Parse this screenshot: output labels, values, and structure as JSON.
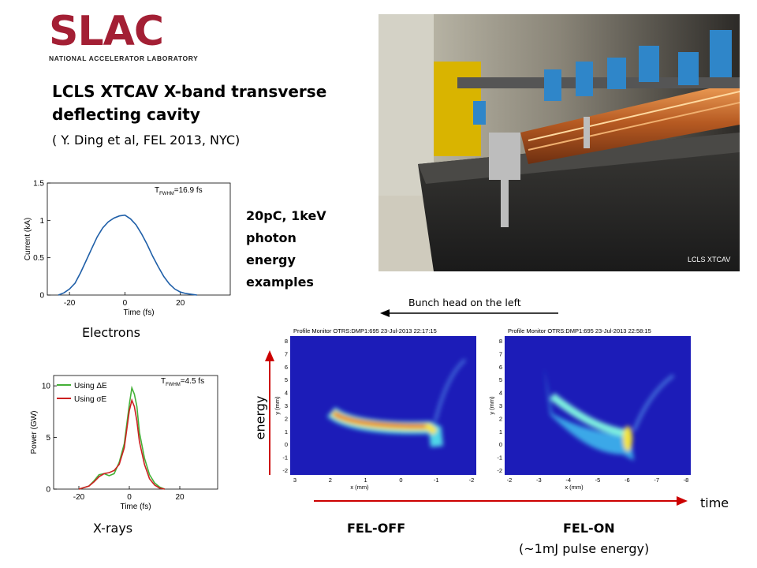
{
  "logo": {
    "wordmark": "SLAC",
    "subtitle": "NATIONAL ACCELERATOR LABORATORY"
  },
  "slide": {
    "title_line1": "LCLS XTCAV X-band transverse",
    "title_line2": "deflecting cavity",
    "citation": "( Y. Ding et al, FEL 2013, NYC)",
    "conditions": [
      "20pC, 1keV",
      "photon",
      "energy",
      "examples"
    ],
    "photo_caption": "LCLS XTCAV",
    "bunch_head_label": "Bunch head on the left",
    "energy_label": "energy",
    "time_label": "time",
    "electrons_label": "Electrons",
    "xrays_label": "X-rays",
    "fel_off_label": "FEL-OFF",
    "fel_on_label": "FEL-ON",
    "fel_on_note": "(~1mJ pulse energy)",
    "arrow_color": "#cc0000"
  },
  "chart_data": [
    {
      "type": "line",
      "xlabel": "Time (fs)",
      "ylabel": "Current (kA)",
      "annotation": "T_FWHM=16.9 fs",
      "annotation_main": "T",
      "annotation_sub": "FWHM",
      "annotation_val": "=16.9 fs",
      "xlim": [
        -28,
        38
      ],
      "ylim": [
        0,
        1.5
      ],
      "xticks": [
        "-20",
        "0",
        "20"
      ],
      "yticks": [
        "0",
        "0.5",
        "1",
        "1.5"
      ],
      "series": [
        {
          "color": "#1f5fa8",
          "x": [
            -24,
            -22,
            -20,
            -18,
            -16,
            -14,
            -12,
            -10,
            -8,
            -6,
            -4,
            -2,
            0,
            2,
            4,
            6,
            8,
            10,
            12,
            14,
            16,
            18,
            20,
            22,
            24,
            26
          ],
          "y": [
            0,
            0.03,
            0.08,
            0.16,
            0.3,
            0.46,
            0.62,
            0.78,
            0.9,
            0.98,
            1.03,
            1.06,
            1.07,
            1.02,
            0.94,
            0.82,
            0.68,
            0.52,
            0.38,
            0.25,
            0.15,
            0.08,
            0.04,
            0.02,
            0.01,
            0
          ]
        }
      ]
    },
    {
      "type": "line",
      "xlabel": "Time (fs)",
      "ylabel": "Power (GW)",
      "annotation": "T_FWHM=4.5 fs",
      "annotation_main": "T",
      "annotation_sub": "FWHM",
      "annotation_val": "=4.5 fs",
      "xlim": [
        -30,
        35
      ],
      "ylim": [
        0,
        11
      ],
      "xticks": [
        "-20",
        "0",
        "20"
      ],
      "yticks": [
        "0",
        "5",
        "10"
      ],
      "legend": "top-left",
      "series": [
        {
          "name": "Using ΔE",
          "color": "#44b037",
          "x": [
            -20,
            -16,
            -14,
            -12,
            -10,
            -8,
            -6,
            -4,
            -2,
            0,
            1,
            2,
            3,
            4,
            6,
            8,
            10,
            12,
            14
          ],
          "y": [
            0,
            0.3,
            0.8,
            1.4,
            1.5,
            1.3,
            1.5,
            2.6,
            4.4,
            8.2,
            9.8,
            9.2,
            8.0,
            5.5,
            3.0,
            1.4,
            0.6,
            0.2,
            0
          ]
        },
        {
          "name": "Using σE",
          "color": "#cc2020",
          "x": [
            -20,
            -16,
            -14,
            -12,
            -10,
            -8,
            -6,
            -4,
            -2,
            0,
            1,
            2,
            3,
            4,
            6,
            8,
            10,
            12,
            14
          ],
          "y": [
            0,
            0.3,
            0.7,
            1.2,
            1.5,
            1.6,
            1.8,
            2.4,
            4.0,
            7.6,
            8.6,
            8.0,
            6.6,
            4.6,
            2.4,
            1.0,
            0.4,
            0.1,
            0
          ]
        }
      ]
    },
    {
      "type": "heatmap",
      "title": "Profile Monitor OTRS:DMP1:695 23-Jul-2013 22:17:15",
      "xlabel": "x (mm)",
      "ylabel": "y (mm)",
      "xticks": [
        "3",
        "2",
        "1",
        "0",
        "-1",
        "-2"
      ],
      "yticks": [
        "-2",
        "-1",
        "0",
        "1",
        "2",
        "3",
        "4",
        "5",
        "6",
        "7",
        "8"
      ]
    },
    {
      "type": "heatmap",
      "title": "Profile Monitor OTRS:DMP1:695 23-Jul-2013 22:58:15",
      "xlabel": "x (mm)",
      "ylabel": "y (mm)",
      "xticks": [
        "-2",
        "-3",
        "-4",
        "-5",
        "-6",
        "-7",
        "-8"
      ],
      "yticks": [
        "-2",
        "-1",
        "0",
        "1",
        "2",
        "3",
        "4",
        "5",
        "6",
        "7",
        "8"
      ]
    }
  ]
}
